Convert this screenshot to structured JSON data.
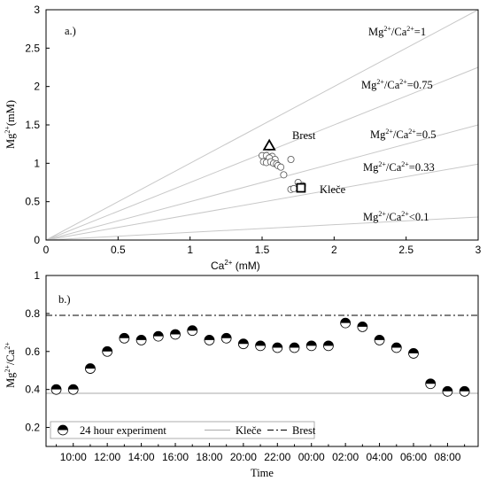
{
  "chart_data": [
    {
      "type": "scatter",
      "panel_label": "a.)",
      "xlabel": "Ca2+ (mM)",
      "ylabel": "Mg2+(mM)",
      "xlim": [
        0,
        3
      ],
      "ylim": [
        0,
        3
      ],
      "x_ticks": [
        "0",
        "0.5",
        "1",
        "1.5",
        "2",
        "2.5",
        "3"
      ],
      "y_ticks": [
        "0",
        "0.5",
        "1",
        "1.5",
        "2",
        "2.5",
        "3"
      ],
      "ratio_lines": [
        {
          "ratio": 1,
          "label": "Mg2+/Ca2+=1"
        },
        {
          "ratio": 0.75,
          "label": "Mg2+/Ca2+=0.75"
        },
        {
          "ratio": 0.5,
          "label": "Mg2+/Ca2+=0.5"
        },
        {
          "ratio": 0.33,
          "label": "Mg2+/Ca2+=0.33"
        },
        {
          "ratio": 0.1,
          "label": "Mg2+/Ca2+<0.1"
        }
      ],
      "series": [
        {
          "marker": "circle",
          "points": [
            [
              1.5,
              1.1
            ],
            [
              1.53,
              1.1
            ],
            [
              1.57,
              1.09
            ],
            [
              1.59,
              1.05
            ],
            [
              1.55,
              1.07
            ],
            [
              1.51,
              1.02
            ],
            [
              1.53,
              1.01
            ],
            [
              1.56,
              1.02
            ],
            [
              1.58,
              1.0
            ],
            [
              1.6,
              0.99
            ],
            [
              1.61,
              0.97
            ],
            [
              1.63,
              0.95
            ],
            [
              1.65,
              0.85
            ],
            [
              1.7,
              1.05
            ],
            [
              1.7,
              0.66
            ],
            [
              1.72,
              0.67
            ],
            [
              1.75,
              0.75
            ],
            [
              1.78,
              0.71
            ]
          ]
        },
        {
          "name": "Brest",
          "marker": "triangle",
          "points": [
            [
              1.55,
              1.23
            ]
          ]
        },
        {
          "name": "Kleče",
          "marker": "square",
          "points": [
            [
              1.77,
              0.68
            ]
          ]
        }
      ],
      "annotations": [
        "Brest",
        "Kleče"
      ]
    },
    {
      "type": "scatter",
      "panel_label": "b.)",
      "xlabel": "Time",
      "ylabel": "Mg2+/Ca2+",
      "ylim": [
        0.1,
        1.0
      ],
      "y_ticks": [
        "0.2",
        "0.4",
        "0.6",
        "0.8",
        "1"
      ],
      "x_ticks": [
        "10:00",
        "12:00",
        "14:00",
        "16:00",
        "18:00",
        "20:00",
        "22:00",
        "00:00",
        "02:00",
        "04:00",
        "06:00",
        "08:00"
      ],
      "x_start_hour": 9,
      "x_end_hour": 33.5,
      "series": [
        {
          "name": "24 hour experiment",
          "marker": "half-filled-circle",
          "x_hours": [
            9,
            10,
            11,
            12,
            13,
            14,
            15,
            16,
            17,
            18,
            19,
            20,
            21,
            22,
            23,
            24,
            25,
            26,
            27,
            28,
            29,
            30,
            31,
            32,
            33
          ],
          "values": [
            0.4,
            0.4,
            0.51,
            0.6,
            0.67,
            0.66,
            0.68,
            0.69,
            0.71,
            0.66,
            0.67,
            0.64,
            0.63,
            0.62,
            0.62,
            0.63,
            0.63,
            0.75,
            0.73,
            0.66,
            0.62,
            0.59,
            0.43,
            0.39,
            0.39
          ]
        },
        {
          "name": "Kleče",
          "style": "solid",
          "value": 0.38
        },
        {
          "name": "Brest",
          "style": "dash-dot",
          "value": 0.79
        }
      ],
      "legend": {
        "position": "bottom-left",
        "entries": [
          "24 hour experiment",
          "Kleče",
          "Brest"
        ]
      }
    }
  ]
}
